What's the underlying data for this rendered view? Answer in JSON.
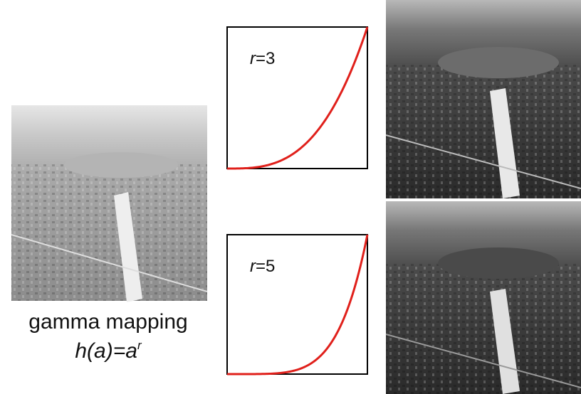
{
  "caption": "gamma mapping",
  "formula": {
    "base": "h(a)=a",
    "exponent": "r"
  },
  "panels": [
    {
      "symbol": "r",
      "equals": "=",
      "gamma": 3,
      "curve_color": "#e0201b"
    },
    {
      "symbol": "r",
      "equals": "=",
      "gamma": 5,
      "curve_color": "#e0201b"
    }
  ]
}
